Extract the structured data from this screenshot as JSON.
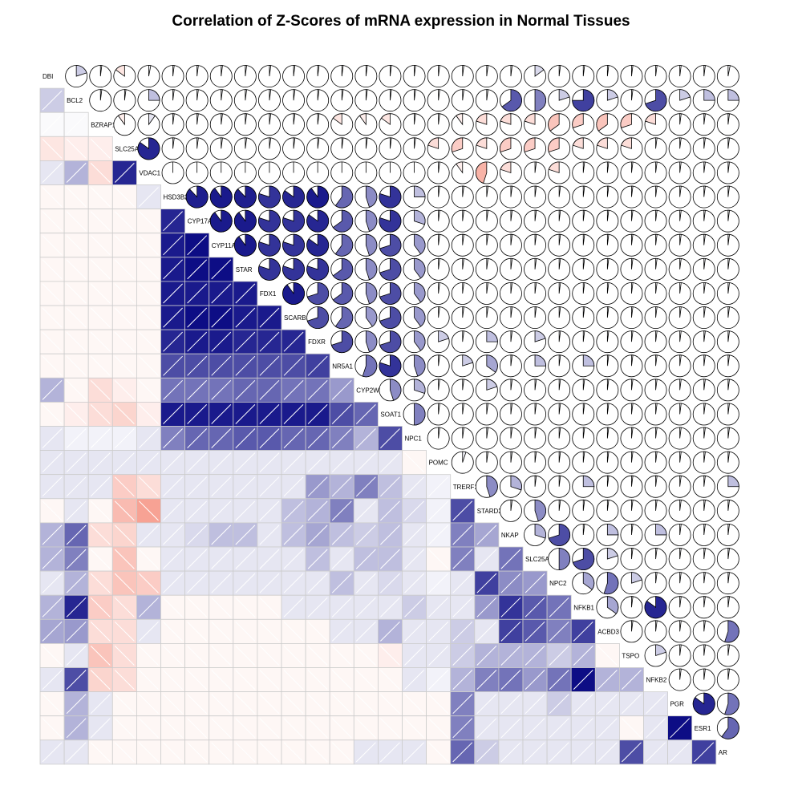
{
  "chart_data": {
    "type": "heatmap",
    "title": "Correlation of Z-Scores of mRNA expression in Normal Tissues",
    "lower_panel": "shade",
    "upper_panel": "pie",
    "diagonal_panel": "label",
    "colors": {
      "negative": "#f0553c",
      "positive": "#00007f",
      "neutral": "#ffffff",
      "grid": "#cccccc",
      "pie_edge": "#000000"
    },
    "variables": [
      "DBI",
      "BCL2",
      "BZRAP1",
      "SLC25A4",
      "VDAC1",
      "HSD3B2",
      "CYP17A1",
      "CYP11A1",
      "STAR",
      "FDX1",
      "SCARB1",
      "FDXR",
      "NR5A1",
      "CYP2W1",
      "SOAT1",
      "NPC1",
      "POMC",
      "TRERF1",
      "STARD3",
      "NKAP",
      "SLC25A6",
      "NPC2",
      "NFKB1",
      "ACBD3",
      "TSPO",
      "NFKB2",
      "PGR",
      "ESR1",
      "AR"
    ],
    "correlations": [
      [
        1,
        0.2,
        0.02,
        -0.15,
        0.03,
        0.02,
        0.02,
        0.02,
        0.02,
        0.02,
        0.02,
        0.02,
        0.02,
        0.02,
        0.02,
        0.02,
        0.02,
        0.02,
        0.02,
        0.02,
        0.15,
        0.02,
        0.02,
        0.02,
        0.02,
        0.02,
        0.02,
        0.02,
        0.03
      ],
      [
        0.2,
        1,
        0.02,
        0.02,
        0.25,
        0.02,
        0.02,
        0.02,
        0.02,
        0.02,
        0.02,
        0.02,
        0.02,
        0.02,
        0.02,
        0.02,
        0.02,
        0.02,
        0.02,
        0.65,
        0.5,
        0.2,
        0.75,
        0.2,
        0.02,
        0.7,
        0.2,
        0.25,
        0.25
      ],
      [
        0.02,
        0.02,
        1,
        -0.1,
        0.1,
        0.02,
        0.02,
        0.02,
        0.02,
        0.02,
        0.02,
        0.02,
        -0.15,
        -0.1,
        -0.15,
        0.02,
        0.02,
        -0.1,
        -0.2,
        -0.2,
        -0.2,
        -0.35,
        -0.3,
        -0.35,
        -0.3,
        -0.2,
        0.02,
        0.02,
        0.02
      ],
      [
        -0.15,
        -0.1,
        -0.1,
        1,
        0.85,
        0.02,
        0.02,
        0.02,
        0.02,
        0.02,
        0.02,
        0.02,
        0.02,
        0.02,
        0.02,
        0.02,
        -0.2,
        -0.3,
        -0.2,
        -0.3,
        -0.3,
        -0.3,
        -0.2,
        -0.2,
        -0.2,
        0.02,
        0.02,
        0.02,
        0.02
      ],
      [
        0.1,
        0.3,
        -0.2,
        0.85,
        1,
        0,
        0,
        0,
        0,
        0,
        0,
        0,
        0,
        0,
        0,
        0,
        0.02,
        -0.1,
        -0.45,
        -0.2,
        0.02,
        -0.2,
        0.02,
        0.02,
        0.02,
        0.02,
        0.02,
        0.02,
        0.02
      ],
      [
        -0.05,
        -0.05,
        -0.05,
        -0.05,
        0.1,
        1,
        0.88,
        0.9,
        0.88,
        0.8,
        0.85,
        0.9,
        0.6,
        0.45,
        0.8,
        0.25,
        0.02,
        0.02,
        0.02,
        0.02,
        0.02,
        0.02,
        0.02,
        0.02,
        0.02,
        0.02,
        0.02,
        0.02,
        0.02
      ],
      [
        -0.05,
        -0.05,
        -0.05,
        -0.05,
        -0.05,
        0.85,
        1,
        0.9,
        0.9,
        0.8,
        0.8,
        0.85,
        0.65,
        0.45,
        0.8,
        0.3,
        0.02,
        0.02,
        0.02,
        0.02,
        0.02,
        0.02,
        0.02,
        0.02,
        0.02,
        0.02,
        0.02,
        0.02,
        0.02
      ],
      [
        -0.05,
        -0.05,
        -0.05,
        -0.05,
        -0.05,
        0.9,
        0.95,
        1,
        0.9,
        0.8,
        0.8,
        0.85,
        0.6,
        0.45,
        0.7,
        0.4,
        0.02,
        0.02,
        0.02,
        0.02,
        0.02,
        0.02,
        0.02,
        0.02,
        0.02,
        0.02,
        0.02,
        0.02,
        0.02
      ],
      [
        -0.05,
        -0.05,
        -0.05,
        -0.05,
        -0.05,
        0.9,
        0.95,
        0.95,
        1,
        0.8,
        0.8,
        0.8,
        0.65,
        0.45,
        0.7,
        0.4,
        0.02,
        0.02,
        0.02,
        0.02,
        0.02,
        0.02,
        0.02,
        0.02,
        0.02,
        0.02,
        0.02,
        0.02,
        0.02
      ],
      [
        -0.05,
        -0.05,
        -0.05,
        -0.05,
        -0.05,
        0.9,
        0.9,
        0.9,
        0.9,
        1,
        0.9,
        0.7,
        0.65,
        0.45,
        0.7,
        0.4,
        0.02,
        0.02,
        0.02,
        0.02,
        0.02,
        0.02,
        0.02,
        0.02,
        0.02,
        0.02,
        0.02,
        0.02,
        0.02
      ],
      [
        -0.05,
        -0.05,
        -0.05,
        -0.05,
        -0.05,
        0.9,
        0.95,
        0.95,
        0.9,
        0.9,
        1,
        0.7,
        0.6,
        0.4,
        0.7,
        0.4,
        0.02,
        0.02,
        0.02,
        0.02,
        0.02,
        0.02,
        0.02,
        0.02,
        0.02,
        0.02,
        0.02,
        0.02,
        0.02
      ],
      [
        -0.05,
        -0.05,
        -0.05,
        -0.05,
        -0.05,
        0.85,
        0.9,
        0.9,
        0.85,
        0.85,
        0.85,
        1,
        0.7,
        0.45,
        0.7,
        0.4,
        0.2,
        0.02,
        0.25,
        0.02,
        0.2,
        0.02,
        0.02,
        0.02,
        0.02,
        0.02,
        0.02,
        0.02,
        0.02
      ],
      [
        -0.05,
        -0.05,
        -0.05,
        -0.05,
        -0.05,
        0.7,
        0.7,
        0.7,
        0.7,
        0.7,
        0.7,
        0.75,
        1,
        0.55,
        0.8,
        0.45,
        0.02,
        0.2,
        0.35,
        0.02,
        0.25,
        0.02,
        0.25,
        0.02,
        0.02,
        0.02,
        0.02,
        0.02,
        0.02
      ],
      [
        0.3,
        -0.05,
        -0.2,
        -0.1,
        -0.05,
        0.55,
        0.55,
        0.55,
        0.6,
        0.6,
        0.55,
        0.55,
        0.4,
        1,
        0.45,
        0.3,
        0.02,
        0.02,
        0.2,
        0.02,
        0.02,
        0.02,
        0.02,
        0.02,
        0.02,
        0.02,
        0.02,
        0.02,
        0.02
      ],
      [
        -0.05,
        -0.1,
        -0.2,
        -0.25,
        -0.1,
        0.9,
        0.9,
        0.9,
        0.9,
        0.9,
        0.9,
        0.9,
        0.7,
        0.6,
        1,
        0.5,
        0.02,
        0.02,
        0.02,
        0.02,
        0.02,
        0.02,
        0.02,
        0.02,
        0.02,
        0.02,
        0.02,
        0.02,
        0.02
      ],
      [
        0.1,
        0.05,
        0.05,
        0.05,
        0.1,
        0.5,
        0.6,
        0.6,
        0.65,
        0.65,
        0.6,
        0.6,
        0.5,
        0.3,
        0.7,
        1,
        0.02,
        0.02,
        0.02,
        0.02,
        0.02,
        0.02,
        0.02,
        0.02,
        0.02,
        0.02,
        0.02,
        0.02,
        0.02
      ],
      [
        0.1,
        0.1,
        0.1,
        0.1,
        0.1,
        0.1,
        0.1,
        0.1,
        0.1,
        0.1,
        0.1,
        0.1,
        0.1,
        0.1,
        0.1,
        -0.05,
        1,
        0.05,
        0.02,
        0.02,
        0.02,
        0.02,
        0.02,
        0.02,
        0.02,
        0.02,
        0.02,
        0.02,
        0.02
      ],
      [
        0.1,
        0.1,
        0.1,
        -0.3,
        -0.2,
        0.1,
        0.1,
        0.1,
        0.1,
        0.1,
        0.1,
        0.4,
        0.3,
        0.5,
        0.25,
        0.1,
        0.05,
        1,
        0.45,
        0.3,
        0.02,
        0.02,
        0.25,
        0.02,
        0.02,
        0.02,
        0.02,
        0.02,
        0.25
      ],
      [
        -0.05,
        0.1,
        -0.05,
        -0.4,
        -0.55,
        0.1,
        0.1,
        0.1,
        0.1,
        0.1,
        0.25,
        0.3,
        0.5,
        0.1,
        0.25,
        0.15,
        0.05,
        0.7,
        1,
        0.02,
        0.45,
        0.02,
        0.02,
        0.02,
        0.02,
        0.02,
        0.02,
        0.02,
        0.02
      ],
      [
        0.3,
        0.6,
        -0.2,
        -0.25,
        0.1,
        0.1,
        0.15,
        0.25,
        0.25,
        0.1,
        0.25,
        0.35,
        0.25,
        0.2,
        0.25,
        0.1,
        0.05,
        0.5,
        0.35,
        1,
        0.3,
        0.7,
        0.02,
        0.25,
        0.02,
        0.25,
        0.02,
        0.02,
        0.02
      ],
      [
        0.3,
        0.5,
        -0.05,
        -0.35,
        -0.05,
        0.1,
        0.1,
        0.1,
        0.1,
        0.1,
        0.1,
        0.25,
        0.1,
        0.25,
        0.25,
        0.1,
        -0.05,
        0.5,
        0.1,
        0.55,
        1,
        0.5,
        0.7,
        0.2,
        0.02,
        0.02,
        0.02,
        0.02,
        0.02
      ],
      [
        0.1,
        0.3,
        -0.2,
        -0.35,
        -0.3,
        0.1,
        0.1,
        0.1,
        0.1,
        0.1,
        0.1,
        0.1,
        0.25,
        0.1,
        0.15,
        0.1,
        0.05,
        0.1,
        0.75,
        0.45,
        0.4,
        1,
        0.35,
        0.55,
        0.2,
        0.02,
        0.02,
        0.02,
        0.02
      ],
      [
        0.3,
        0.85,
        -0.3,
        -0.2,
        0.3,
        -0.05,
        -0.05,
        -0.05,
        -0.05,
        -0.05,
        0.1,
        0.1,
        0.1,
        0.1,
        0.1,
        0.2,
        0.1,
        0.1,
        0.4,
        0.8,
        0.65,
        0.55,
        1,
        0.35,
        0.02,
        0.85,
        0.02,
        0.02,
        0.02
      ],
      [
        0.35,
        0.4,
        -0.2,
        -0.2,
        0.1,
        -0.05,
        -0.05,
        -0.05,
        -0.05,
        -0.05,
        -0.05,
        -0.05,
        0.1,
        0.1,
        0.3,
        0.1,
        0.1,
        0.2,
        0.1,
        0.75,
        0.65,
        0.5,
        0.75,
        1,
        0.02,
        0.02,
        0.02,
        0.02,
        0.55
      ],
      [
        -0.05,
        0.1,
        -0.35,
        -0.2,
        -0.05,
        -0.05,
        -0.05,
        -0.05,
        -0.05,
        -0.05,
        -0.05,
        -0.05,
        -0.05,
        -0.05,
        -0.1,
        0.1,
        0.1,
        0.2,
        0.3,
        0.3,
        0.3,
        0.2,
        0.3,
        -0.05,
        1,
        0.2,
        0.02,
        0.02,
        0.02
      ],
      [
        0.1,
        0.7,
        -0.25,
        -0.2,
        -0.05,
        -0.05,
        -0.05,
        -0.05,
        -0.05,
        -0.05,
        -0.05,
        -0.05,
        -0.05,
        -0.05,
        -0.05,
        0.1,
        0.05,
        0.3,
        0.5,
        0.55,
        0.4,
        0.55,
        0.95,
        0.3,
        0.3,
        1,
        0.02,
        0.02,
        0.02
      ],
      [
        -0.05,
        0.3,
        0.1,
        -0.05,
        -0.05,
        -0.05,
        -0.05,
        -0.05,
        -0.05,
        -0.05,
        -0.05,
        -0.05,
        -0.05,
        -0.05,
        -0.05,
        -0.05,
        -0.05,
        0.5,
        0.1,
        0.1,
        0.1,
        0.2,
        0.1,
        0.1,
        0.1,
        0.1,
        1,
        0.85,
        0.55
      ],
      [
        -0.05,
        0.3,
        0.1,
        -0.05,
        -0.05,
        -0.05,
        -0.05,
        -0.05,
        -0.05,
        -0.05,
        -0.05,
        -0.05,
        -0.05,
        -0.05,
        -0.05,
        -0.05,
        -0.05,
        0.5,
        0.1,
        0.1,
        0.1,
        0.1,
        0.1,
        0.1,
        -0.05,
        0.1,
        0.95,
        1,
        0.6
      ],
      [
        0.1,
        0.1,
        -0.05,
        -0.05,
        -0.05,
        -0.05,
        -0.05,
        -0.05,
        -0.05,
        -0.05,
        -0.05,
        -0.05,
        -0.05,
        0.1,
        0.1,
        0.1,
        -0.05,
        0.6,
        0.2,
        0.1,
        0.1,
        0.1,
        0.1,
        0.1,
        0.7,
        0.1,
        0.1,
        0.75,
        1
      ]
    ]
  }
}
